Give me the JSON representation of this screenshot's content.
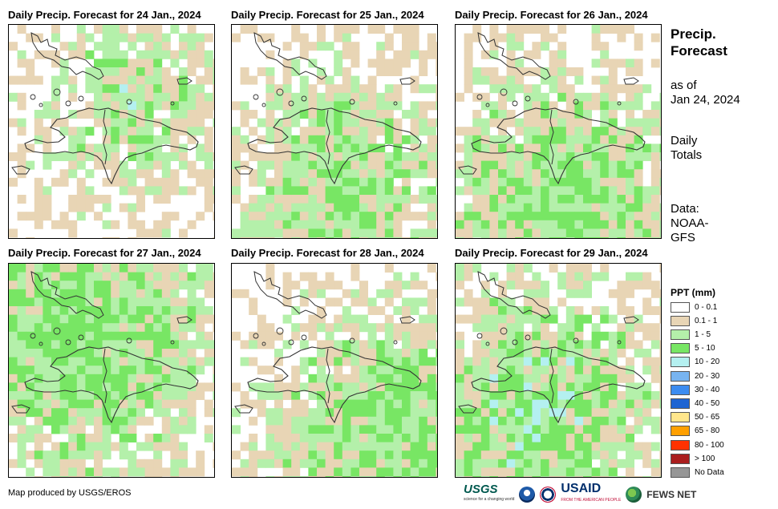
{
  "panels": [
    {
      "title": "Daily Precip. Forecast for 24 Jan., 2024",
      "seed": 11,
      "wet": 0.25,
      "green_bias": [
        0.55,
        0.35
      ],
      "blue": true
    },
    {
      "title": "Daily Precip. Forecast for 25 Jan., 2024",
      "seed": 23,
      "wet": 0.45,
      "green_bias": [
        0.5,
        0.7
      ],
      "blue": false
    },
    {
      "title": "Daily Precip. Forecast for 26 Jan., 2024",
      "seed": 37,
      "wet": 0.6,
      "green_bias": [
        0.5,
        0.8
      ],
      "blue": false
    },
    {
      "title": "Daily Precip. Forecast for 27 Jan., 2024",
      "seed": 41,
      "wet": 0.7,
      "green_bias": [
        0.3,
        0.3
      ],
      "blue": false
    },
    {
      "title": "Daily Precip. Forecast for 28 Jan., 2024",
      "seed": 53,
      "wet": 0.55,
      "green_bias": [
        0.7,
        0.75
      ],
      "blue": false
    },
    {
      "title": "Daily Precip. Forecast for 29 Jan., 2024",
      "seed": 67,
      "wet": 0.6,
      "green_bias": [
        0.35,
        0.65
      ],
      "blue": true
    }
  ],
  "side": {
    "title_line1": "Precip.",
    "title_line2": "Forecast",
    "asof_line1": "as of",
    "asof_line2": "Jan 24, 2024",
    "daily_line1": "Daily",
    "daily_line2": "Totals",
    "data_line1": "Data:",
    "data_line2": "NOAA-",
    "data_line3": "GFS"
  },
  "legend": {
    "title": "PPT (mm)",
    "items": [
      {
        "label": "0 - 0.1",
        "color": "#ffffff"
      },
      {
        "label": "0.1 - 1",
        "color": "#e8d5b5"
      },
      {
        "label": "1 - 5",
        "color": "#b4f0aa"
      },
      {
        "label": "5 - 10",
        "color": "#78e664"
      },
      {
        "label": "10 - 20",
        "color": "#b4f0f0"
      },
      {
        "label": "20 - 30",
        "color": "#78b4f0"
      },
      {
        "label": "30 - 40",
        "color": "#3c8cf0"
      },
      {
        "label": "40 - 50",
        "color": "#1e64d2"
      },
      {
        "label": "50 - 65",
        "color": "#ffe68c"
      },
      {
        "label": "65 - 80",
        "color": "#ffa000"
      },
      {
        "label": "80 - 100",
        "color": "#ff3200"
      },
      {
        "label": "> 100",
        "color": "#aa1e1e"
      },
      {
        "label": "No Data",
        "color": "#969696"
      }
    ]
  },
  "credit": "Map produced by USGS/EROS",
  "logos": {
    "usgs": "USGS",
    "usgs_tagline": "science for a changing world",
    "usaid": "USAID",
    "usaid_tagline": "FROM THE AMERICAN PEOPLE",
    "fews": "FEWS NET"
  }
}
